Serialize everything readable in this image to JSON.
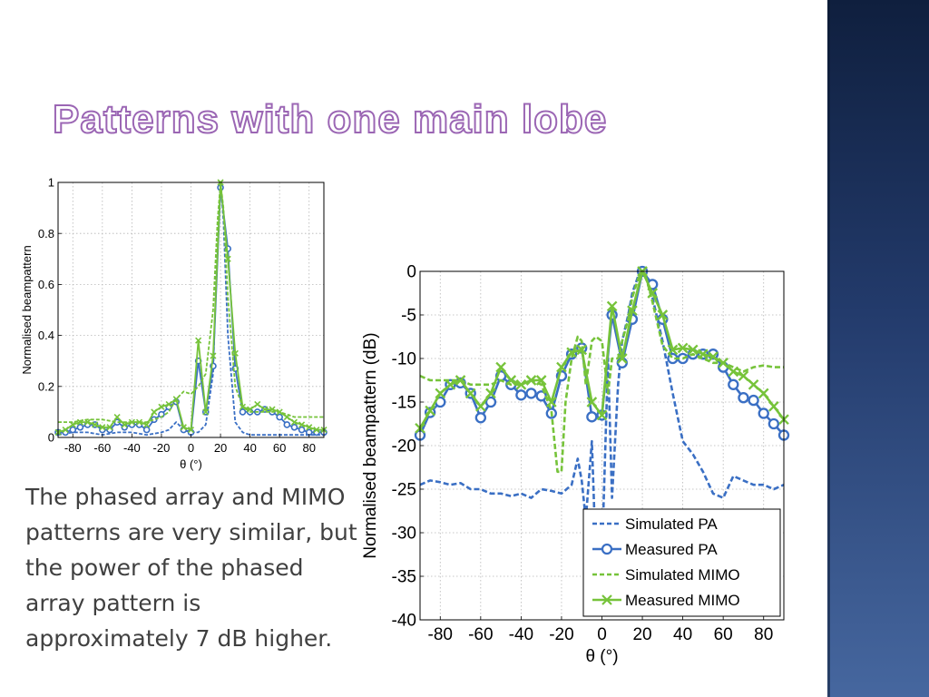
{
  "slide": {
    "title": "Patterns with one main lobe",
    "body": "The phased array and MIMO patterns are very similar, but the power of the phased array pattern is approximately 7 dB higher."
  },
  "colors": {
    "pa": "#3a6fc4",
    "mimo": "#76c33a",
    "title_outline": "#9b66b4",
    "sidebar": "#1c315d"
  },
  "chart_data": [
    {
      "type": "line",
      "ylabel": "Normalised beampattern",
      "xlabel": "θ (°)",
      "xlim": [
        -90,
        90
      ],
      "ylim": [
        0,
        1
      ],
      "xticks": [
        "-80",
        "-60",
        "-40",
        "-20",
        "0",
        "20",
        "40",
        "60",
        "80"
      ],
      "yticks": [
        "0",
        "0.2",
        "0.4",
        "0.6",
        "0.8",
        "1"
      ],
      "grid": true,
      "legend": "none",
      "series": [
        {
          "key": "simPA",
          "style": "dashed",
          "color": "#3a6fc4",
          "marker": "none",
          "x": [
            -90,
            -80,
            -70,
            -60,
            -50,
            -40,
            -30,
            -20,
            -15,
            -10,
            -5,
            0,
            5,
            10,
            15,
            18,
            20,
            22,
            25,
            30,
            35,
            40,
            50,
            60,
            70,
            80,
            90
          ],
          "y": [
            0.01,
            0.02,
            0.02,
            0.01,
            0.02,
            0.02,
            0.01,
            0.02,
            0.03,
            0.06,
            0.03,
            0.02,
            0.02,
            0.05,
            0.25,
            0.8,
            1.0,
            0.85,
            0.4,
            0.06,
            0.02,
            0.01,
            0.01,
            0.01,
            0.01,
            0.01,
            0.01
          ]
        },
        {
          "key": "measPA",
          "style": "solid",
          "color": "#3a6fc4",
          "marker": "circle",
          "x": [
            -90,
            -85,
            -80,
            -75,
            -70,
            -65,
            -60,
            -55,
            -50,
            -45,
            -40,
            -35,
            -30,
            -25,
            -20,
            -15,
            -10,
            -5,
            0,
            5,
            10,
            15,
            20,
            25,
            30,
            35,
            40,
            45,
            50,
            55,
            60,
            65,
            70,
            75,
            80,
            85,
            90
          ],
          "y": [
            0.02,
            0.02,
            0.03,
            0.04,
            0.05,
            0.05,
            0.03,
            0.03,
            0.06,
            0.04,
            0.05,
            0.05,
            0.03,
            0.07,
            0.09,
            0.12,
            0.14,
            0.03,
            0.02,
            0.3,
            0.1,
            0.28,
            0.98,
            0.74,
            0.27,
            0.1,
            0.1,
            0.1,
            0.11,
            0.1,
            0.08,
            0.05,
            0.04,
            0.03,
            0.02,
            0.02,
            0.02
          ]
        },
        {
          "key": "simMIMO",
          "style": "dashed",
          "color": "#76c33a",
          "marker": "none",
          "x": [
            -90,
            -80,
            -70,
            -60,
            -50,
            -40,
            -30,
            -20,
            -15,
            -10,
            -5,
            0,
            5,
            10,
            15,
            18,
            20,
            22,
            25,
            30,
            35,
            40,
            50,
            60,
            70,
            80,
            90
          ],
          "y": [
            0.06,
            0.06,
            0.07,
            0.07,
            0.06,
            0.06,
            0.06,
            0.08,
            0.1,
            0.15,
            0.18,
            0.17,
            0.2,
            0.25,
            0.5,
            0.85,
            1.0,
            0.9,
            0.55,
            0.2,
            0.12,
            0.1,
            0.1,
            0.1,
            0.08,
            0.08,
            0.08
          ]
        },
        {
          "key": "measMIMO",
          "style": "solid",
          "color": "#76c33a",
          "marker": "x",
          "x": [
            -90,
            -85,
            -80,
            -75,
            -70,
            -65,
            -60,
            -55,
            -50,
            -45,
            -40,
            -35,
            -30,
            -25,
            -20,
            -15,
            -10,
            -5,
            0,
            5,
            10,
            15,
            20,
            25,
            30,
            35,
            40,
            45,
            50,
            55,
            60,
            65,
            70,
            75,
            80,
            85,
            90
          ],
          "y": [
            0.02,
            0.03,
            0.05,
            0.06,
            0.06,
            0.05,
            0.04,
            0.04,
            0.08,
            0.05,
            0.06,
            0.06,
            0.05,
            0.1,
            0.12,
            0.13,
            0.15,
            0.04,
            0.03,
            0.38,
            0.1,
            0.32,
            1.0,
            0.7,
            0.33,
            0.12,
            0.11,
            0.13,
            0.11,
            0.11,
            0.1,
            0.08,
            0.06,
            0.05,
            0.04,
            0.03,
            0.03
          ]
        }
      ]
    },
    {
      "type": "line",
      "ylabel": "Normalised beampattern (dB)",
      "xlabel": "θ (°)",
      "xlim": [
        -90,
        90
      ],
      "ylim": [
        -40,
        0
      ],
      "xticks": [
        "-80",
        "-60",
        "-40",
        "-20",
        "0",
        "20",
        "40",
        "60",
        "80"
      ],
      "yticks": [
        "0",
        "-5",
        "-10",
        "-15",
        "-20",
        "-25",
        "-30",
        "-35",
        "-40"
      ],
      "grid": true,
      "legend": "bottom-right",
      "series": [
        {
          "key": "simPA",
          "name": "Simulated PA",
          "style": "dashed",
          "color": "#3a6fc4",
          "marker": "none",
          "x": [
            -90,
            -85,
            -80,
            -75,
            -70,
            -65,
            -60,
            -55,
            -50,
            -45,
            -40,
            -35,
            -30,
            -25,
            -20,
            -15,
            -12,
            -10,
            -8,
            -5,
            -3,
            0,
            3,
            5,
            8,
            10,
            13,
            15,
            18,
            20,
            22,
            25,
            30,
            35,
            40,
            45,
            50,
            55,
            60,
            65,
            70,
            75,
            80,
            85,
            90
          ],
          "y": [
            -24.5,
            -24,
            -24.2,
            -24.5,
            -24.3,
            -25,
            -25,
            -25.5,
            -25.5,
            -25.8,
            -25.5,
            -26,
            -25,
            -25.2,
            -25.5,
            -24.5,
            -21.5,
            -24,
            -28.5,
            -19.5,
            -33,
            -33,
            -10,
            -26,
            -13,
            -8,
            -5,
            -2.5,
            -0.5,
            0,
            -0.8,
            -3,
            -8,
            -14,
            -19.5,
            -21,
            -23,
            -25.5,
            -26,
            -23.5,
            -24,
            -24.5,
            -24.5,
            -25,
            -24.5
          ]
        },
        {
          "key": "measPA",
          "name": "Measured PA",
          "style": "solid",
          "color": "#3a6fc4",
          "marker": "circle",
          "x": [
            -90,
            -85,
            -80,
            -75,
            -70,
            -65,
            -60,
            -55,
            -50,
            -45,
            -40,
            -35,
            -30,
            -25,
            -20,
            -15,
            -10,
            -5,
            0,
            5,
            10,
            15,
            20,
            25,
            30,
            35,
            40,
            45,
            50,
            55,
            60,
            65,
            70,
            75,
            80,
            85,
            90
          ],
          "y": [
            -18.8,
            -16.2,
            -15,
            -13,
            -12.8,
            -14,
            -16.8,
            -15,
            -12,
            -13,
            -14.2,
            -14,
            -14.3,
            -16.3,
            -12,
            -9.5,
            -8.8,
            -16.7,
            -16.5,
            -5,
            -10.5,
            -5.5,
            0,
            -1.5,
            -5.5,
            -10,
            -10,
            -9.5,
            -9.5,
            -9.5,
            -11,
            -13,
            -14.5,
            -14.8,
            -16.3,
            -17.5,
            -18.8
          ]
        },
        {
          "key": "simMIMO",
          "name": "Simulated MIMO",
          "style": "dashed",
          "color": "#76c33a",
          "marker": "none",
          "x": [
            -90,
            -85,
            -80,
            -75,
            -70,
            -65,
            -60,
            -55,
            -50,
            -45,
            -40,
            -35,
            -30,
            -25,
            -22,
            -20,
            -18,
            -15,
            -12,
            -10,
            -8,
            -5,
            -3,
            0,
            3,
            5,
            8,
            10,
            13,
            15,
            18,
            20,
            22,
            25,
            30,
            35,
            40,
            45,
            50,
            55,
            60,
            65,
            70,
            75,
            80,
            85,
            90
          ],
          "y": [
            -12,
            -12.5,
            -12.5,
            -12.5,
            -12.5,
            -13,
            -13,
            -13,
            -12.5,
            -13,
            -13,
            -12.5,
            -13,
            -16,
            -23,
            -23,
            -15,
            -10,
            -7.5,
            -8,
            -13,
            -8,
            -7.5,
            -8,
            -14,
            -10,
            -10,
            -8,
            -5.5,
            -3,
            -0.8,
            0,
            -0.8,
            -3.5,
            -8.5,
            -10,
            -10,
            -9.5,
            -10,
            -10.5,
            -10.5,
            -11,
            -11.5,
            -11,
            -10.8,
            -11,
            -11
          ]
        },
        {
          "key": "measMIMO",
          "name": "Measured MIMO",
          "style": "solid",
          "color": "#76c33a",
          "marker": "x",
          "x": [
            -90,
            -85,
            -80,
            -75,
            -70,
            -65,
            -60,
            -55,
            -50,
            -45,
            -40,
            -35,
            -30,
            -25,
            -20,
            -15,
            -10,
            -5,
            0,
            5,
            10,
            15,
            20,
            25,
            30,
            35,
            40,
            45,
            50,
            55,
            60,
            65,
            70,
            75,
            80,
            85,
            90
          ],
          "y": [
            -18,
            -16,
            -14,
            -13,
            -12.5,
            -14,
            -15.5,
            -14,
            -11,
            -12.5,
            -13,
            -12.5,
            -12.5,
            -15,
            -11,
            -9.3,
            -9,
            -15,
            -16.5,
            -4,
            -10,
            -4.5,
            0,
            -2.5,
            -5,
            -9,
            -8.8,
            -9,
            -9.5,
            -9.8,
            -10.5,
            -11.5,
            -12,
            -13,
            -14,
            -15.5,
            -17
          ]
        }
      ]
    }
  ]
}
